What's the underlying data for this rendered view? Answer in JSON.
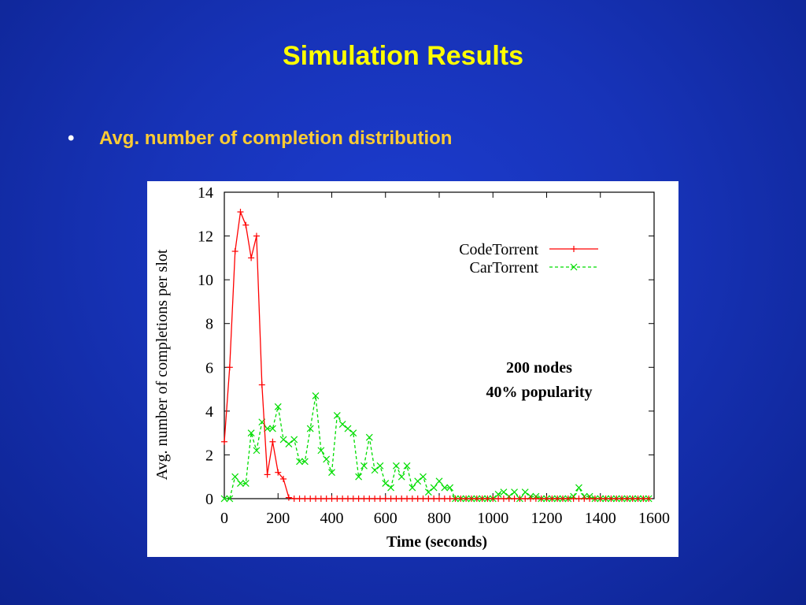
{
  "slide": {
    "title": "Simulation Results",
    "bullet_symbol": "•",
    "bullet_text": "Avg. number of completion distribution"
  },
  "chart_data": {
    "type": "line",
    "xlabel": "Time (seconds)",
    "ylabel": "Avg. number of completions per slot",
    "xlim": [
      0,
      1600
    ],
    "ylim": [
      0,
      14
    ],
    "x_ticks": [
      0,
      200,
      400,
      600,
      800,
      1000,
      1200,
      1400,
      1600
    ],
    "y_ticks": [
      0,
      2,
      4,
      6,
      8,
      10,
      12,
      14
    ],
    "grid": false,
    "legend_position": "top-right",
    "annotation": [
      "200 nodes",
      "40% popularity"
    ],
    "series": [
      {
        "name": "CodeTorrent",
        "color": "#ff0000",
        "style": "solid",
        "marker": "plus",
        "x": [
          0,
          20,
          40,
          60,
          80,
          100,
          120,
          140,
          160,
          180,
          200,
          220,
          240,
          260,
          280,
          300,
          320,
          340,
          360,
          380,
          400,
          420,
          440,
          460,
          480,
          500,
          520,
          540,
          560,
          580,
          600,
          620,
          640,
          660,
          680,
          700,
          720,
          740,
          760,
          780,
          800,
          820,
          840,
          860,
          880,
          900,
          920,
          940,
          960,
          980,
          1000,
          1020,
          1040,
          1060,
          1080,
          1100,
          1120,
          1140,
          1160,
          1180,
          1200,
          1220,
          1240,
          1260,
          1280,
          1300,
          1320,
          1340,
          1360,
          1380,
          1400,
          1420,
          1440,
          1460,
          1480,
          1500,
          1520,
          1540,
          1560,
          1580
        ],
        "y": [
          2.6,
          6.0,
          11.3,
          13.1,
          12.5,
          11.0,
          12.0,
          5.2,
          1.1,
          2.6,
          1.2,
          0.9,
          0.05,
          0,
          0,
          0,
          0,
          0,
          0,
          0,
          0,
          0,
          0,
          0,
          0,
          0,
          0,
          0,
          0,
          0,
          0,
          0,
          0,
          0,
          0,
          0,
          0,
          0,
          0,
          0,
          0,
          0,
          0,
          0,
          0,
          0,
          0,
          0,
          0,
          0,
          0,
          0,
          0,
          0,
          0,
          0,
          0,
          0,
          0,
          0,
          0,
          0,
          0,
          0,
          0,
          0,
          0,
          0,
          0,
          0,
          0,
          0,
          0,
          0,
          0,
          0,
          0,
          0,
          0,
          0
        ]
      },
      {
        "name": "CarTorrent",
        "color": "#00dd00",
        "style": "dashed",
        "marker": "cross",
        "x": [
          0,
          20,
          40,
          60,
          80,
          100,
          120,
          140,
          160,
          180,
          200,
          220,
          240,
          260,
          280,
          300,
          320,
          340,
          360,
          380,
          400,
          420,
          440,
          460,
          480,
          500,
          520,
          540,
          560,
          580,
          600,
          620,
          640,
          660,
          680,
          700,
          720,
          740,
          760,
          780,
          800,
          820,
          840,
          860,
          880,
          900,
          920,
          940,
          960,
          980,
          1000,
          1020,
          1040,
          1060,
          1080,
          1100,
          1120,
          1140,
          1160,
          1180,
          1200,
          1220,
          1240,
          1260,
          1280,
          1300,
          1320,
          1340,
          1360,
          1380,
          1400,
          1420,
          1440,
          1460,
          1480,
          1500,
          1520,
          1540,
          1560,
          1580
        ],
        "y": [
          0,
          0,
          1.0,
          0.7,
          0.7,
          3.0,
          2.2,
          3.5,
          3.2,
          3.2,
          4.2,
          2.7,
          2.5,
          2.7,
          1.7,
          1.7,
          3.2,
          4.7,
          2.2,
          1.8,
          1.2,
          3.8,
          3.4,
          3.2,
          3.0,
          1.0,
          1.5,
          2.8,
          1.3,
          1.5,
          0.7,
          0.5,
          1.5,
          1.0,
          1.5,
          0.5,
          0.8,
          1.0,
          0.3,
          0.5,
          0.8,
          0.5,
          0.5,
          0,
          0,
          0,
          0,
          0,
          0,
          0,
          0,
          0.2,
          0.3,
          0.1,
          0.3,
          0,
          0.3,
          0.1,
          0.1,
          0,
          0,
          0,
          0,
          0,
          0,
          0.1,
          0.5,
          0.1,
          0.1,
          0,
          0,
          0,
          0,
          0,
          0,
          0,
          0,
          0,
          0,
          0
        ]
      }
    ]
  }
}
